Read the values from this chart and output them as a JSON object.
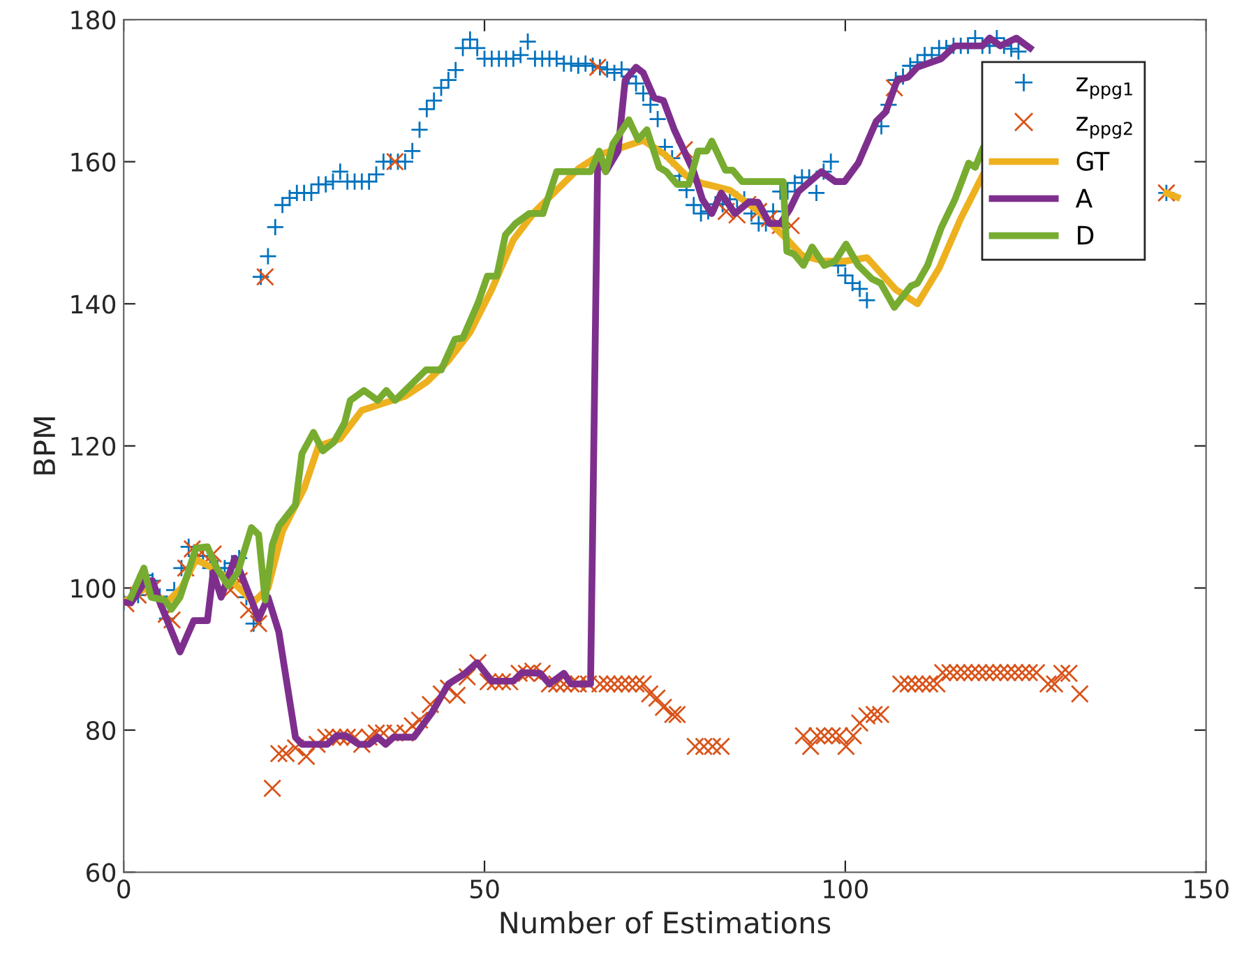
{
  "chart_data": {
    "type": "line",
    "xlabel": "Number of Estimations",
    "ylabel": "BPM",
    "xlim": [
      0,
      150
    ],
    "ylim": [
      60,
      180
    ],
    "xticks": [
      0,
      50,
      100,
      150
    ],
    "yticks": [
      60,
      80,
      100,
      120,
      140,
      160,
      180
    ],
    "grid": false,
    "legend": "top right",
    "line_style": "solid",
    "series": [
      {
        "name": "z$_{ppg1}$",
        "type": "scatter",
        "marker": "plus",
        "color": "#0072bd",
        "x": [
          0,
          1,
          2,
          3,
          4,
          5,
          6,
          7,
          8,
          9,
          10,
          11,
          12,
          13,
          14,
          15,
          16,
          17,
          18,
          19,
          20,
          21,
          22,
          23,
          24,
          25,
          26,
          27,
          28,
          29,
          30,
          31,
          32,
          33,
          34,
          35,
          36,
          37,
          38,
          39,
          40,
          41,
          42,
          43,
          44,
          45,
          46,
          47,
          48,
          49,
          50,
          51,
          52,
          53,
          54,
          55,
          56,
          57,
          58,
          59,
          60,
          61,
          62,
          63,
          64,
          65,
          66,
          67,
          68,
          69,
          70,
          71,
          72,
          73,
          74,
          75,
          76,
          77,
          78,
          79,
          80,
          81,
          82,
          83,
          84,
          85,
          86,
          87,
          88,
          89,
          90,
          91,
          92,
          93,
          94,
          95,
          96,
          97,
          98,
          99,
          100,
          101,
          102,
          103,
          105,
          106,
          107,
          108,
          109,
          110,
          111,
          112,
          113,
          114,
          115,
          116,
          117,
          118,
          119,
          120,
          121,
          122,
          123,
          124,
          144.5
        ],
        "values": [
          98,
          98.7,
          99,
          101.8,
          101,
          98.8,
          95.7,
          99.7,
          102.8,
          105.8,
          104.5,
          104.5,
          102.8,
          102.8,
          102.8,
          103.5,
          104.2,
          98.7,
          95,
          143.8,
          146.7,
          150.8,
          153.9,
          154.9,
          155.6,
          155.6,
          155.6,
          156.8,
          156.8,
          157.2,
          158.6,
          157.2,
          157.2,
          157.2,
          157.2,
          158.2,
          160,
          160,
          160,
          160,
          161.5,
          164.5,
          167.4,
          168.6,
          170.4,
          171.5,
          172.9,
          176,
          177.2,
          176,
          174.5,
          174.5,
          174.5,
          174.5,
          174.5,
          175,
          176.9,
          174.5,
          174.5,
          174.5,
          174.5,
          173.8,
          173.8,
          173.5,
          173.8,
          173.5,
          173.3,
          173,
          172.5,
          173,
          172,
          171,
          169.6,
          168,
          166,
          162.1,
          160.5,
          158,
          156,
          153.9,
          152.7,
          153,
          154,
          154,
          154.7,
          154.7,
          154.7,
          152.7,
          151.3,
          151.3,
          153,
          155.8,
          155.8,
          157,
          157.8,
          157.8,
          155.6,
          158.6,
          160,
          145.4,
          144,
          142.9,
          142.1,
          140.5,
          165,
          168,
          171.5,
          172,
          173.5,
          174,
          175,
          175,
          176,
          176,
          176.3,
          176.3,
          176.3,
          177.4,
          176.3,
          176.3,
          177.4,
          176.3,
          175.9,
          175.5,
          155.6
        ]
      },
      {
        "name": "z$_{ppg2}$",
        "type": "scatter",
        "marker": "cross",
        "color": "#d95319",
        "x": [
          0.3,
          2,
          4,
          5.9,
          6.7,
          8.6,
          9.5,
          10.8,
          12.4,
          14.8,
          16,
          17.3,
          18.7,
          19.6,
          20.6,
          21.5,
          22.5,
          23.8,
          25.3,
          26.8,
          28,
          29,
          30,
          31,
          32,
          33,
          34,
          35,
          36,
          37.6,
          37.6,
          39,
          40,
          41,
          42.5,
          44,
          45,
          46.2,
          47.6,
          49.1,
          50.5,
          51.5,
          52.5,
          53.5,
          54.8,
          55.8,
          56.7,
          58,
          59,
          60,
          61,
          62,
          63,
          64.4,
          65.7,
          66,
          67,
          68,
          69,
          70,
          71,
          72,
          72.9,
          73.9,
          74.8,
          76.1,
          76.7,
          77.7,
          79.2,
          80.4,
          81.6,
          82.8,
          83.5,
          85,
          86.5,
          88,
          89.5,
          91,
          92.5,
          94.2,
          95.2,
          96.1,
          97.1,
          98.2,
          99.2,
          100.1,
          101.1,
          102,
          103,
          104,
          104.9,
          106.8,
          107.7,
          108.7,
          109.7,
          110.7,
          111.7,
          112.7,
          113.5,
          114.5,
          115.5,
          116.5,
          117.5,
          118.5,
          119.5,
          120.5,
          121.5,
          122.5,
          123.5,
          124.5,
          125.5,
          126.5,
          128.1,
          129,
          130,
          131,
          132.5,
          144.5
        ],
        "values": [
          97.8,
          99,
          100,
          96.3,
          95.5,
          102.8,
          105.5,
          105,
          104.8,
          99.7,
          101,
          96.9,
          95,
          143.8,
          71.8,
          76.7,
          76.7,
          77.5,
          76.3,
          78,
          79,
          79,
          79,
          79,
          79,
          78,
          79,
          79.6,
          79.6,
          79.6,
          160,
          79.6,
          80.6,
          81.4,
          83.6,
          85.1,
          85.9,
          84.9,
          87.5,
          89.5,
          86.8,
          86.8,
          86.8,
          86.8,
          88,
          88,
          88.3,
          88,
          86.5,
          86.5,
          86.5,
          86.5,
          86.5,
          86.5,
          173.3,
          86.5,
          86.5,
          86.5,
          86.5,
          86.5,
          86.5,
          86.5,
          85.1,
          84.5,
          83.2,
          82.2,
          82.2,
          161.7,
          77.7,
          77.7,
          77.7,
          77.7,
          153,
          152.5,
          154,
          153,
          152,
          151,
          151,
          79.2,
          77.7,
          79.2,
          79.2,
          79.2,
          79.2,
          77.7,
          79.2,
          81,
          82,
          82.2,
          82.2,
          170.4,
          86.5,
          86.5,
          86.5,
          86.5,
          86.5,
          86.5,
          88.1,
          88.1,
          88.1,
          88.1,
          88.1,
          88.1,
          88.1,
          88.1,
          88.1,
          88.1,
          88.1,
          88.1,
          88.1,
          88.1,
          86.5,
          86.5,
          88,
          88,
          85.1,
          155.6
        ]
      },
      {
        "name": "GT",
        "color": "#edb120",
        "x": [
          0,
          3,
          6,
          8,
          10,
          12,
          15,
          18,
          20,
          22,
          25,
          27,
          30,
          33,
          36,
          39,
          42,
          45,
          48,
          51,
          54,
          57,
          60,
          63,
          66,
          69,
          72,
          75,
          78,
          80,
          84,
          88,
          92,
          94,
          97,
          100,
          103,
          107,
          110,
          113,
          116,
          119,
          122,
          130,
          144.5,
          146
        ],
        "values": [
          98,
          100,
          98,
          100,
          104,
          103,
          101,
          98,
          100,
          108,
          114,
          120,
          121,
          125,
          126,
          127,
          129,
          132,
          136,
          142,
          149,
          153,
          156,
          159,
          161,
          162,
          163,
          161,
          158,
          157,
          156,
          153,
          149,
          146.8,
          146,
          146,
          146.5,
          142,
          140,
          145,
          152,
          158,
          null,
          null,
          155.6,
          155
        ]
      },
      {
        "name": "A",
        "color": "#7e2f8e",
        "x": [
          0,
          1,
          3,
          4,
          5,
          7.8,
          9.7,
          11.6,
          12.4,
          13.5,
          15.4,
          18.7,
          20,
          21.5,
          23.8,
          24.7,
          28.2,
          29.5,
          30.8,
          32.6,
          34,
          35.2,
          36.3,
          37.4,
          40.2,
          42.8,
          45,
          47.2,
          49,
          51,
          54,
          55.2,
          57.7,
          59,
          61,
          62,
          64.7,
          65.7,
          66.8,
          68.5,
          69.5,
          71,
          72,
          73.5,
          74.8,
          76.3,
          79,
          80.2,
          81.5,
          82.8,
          84.7,
          86.6,
          87.9,
          89.5,
          91,
          92.3,
          93.5,
          96.7,
          98.6,
          99.9,
          101.8,
          104.3,
          105.6,
          107.2,
          108.7,
          110,
          113.3,
          115.2,
          119,
          120,
          121.5,
          123.7,
          125.6
        ],
        "values": [
          98,
          97.9,
          101,
          101,
          98,
          91,
          95.4,
          95.4,
          102.2,
          98.7,
          104.2,
          95.7,
          98.7,
          93.8,
          79,
          78,
          78,
          79.2,
          79.2,
          78,
          78,
          79,
          78,
          79,
          79,
          82.6,
          86.5,
          87.9,
          89.5,
          86.9,
          86.9,
          88.1,
          88,
          86.5,
          88,
          86.5,
          86.5,
          161,
          158.6,
          161.5,
          171.5,
          173.3,
          172.5,
          169,
          168.6,
          164.5,
          158.6,
          154.7,
          152.7,
          155.6,
          152.7,
          154.3,
          154.3,
          151.3,
          151.3,
          153.3,
          155.8,
          158.6,
          157.2,
          157.2,
          159.8,
          165.7,
          167,
          171.5,
          171.9,
          173.3,
          174.5,
          176.3,
          176.3,
          177.4,
          176.3,
          177.4,
          176
        ]
      },
      {
        "name": "D",
        "color": "#77ac30",
        "x": [
          1,
          2.8,
          3.8,
          5.7,
          6.6,
          7.8,
          10,
          11.6,
          12.9,
          14.5,
          15.8,
          17.7,
          18.7,
          19.6,
          20.6,
          21.5,
          23.8,
          24.7,
          26.3,
          27.6,
          29.1,
          30.6,
          31.4,
          33.3,
          35.2,
          36.4,
          37.6,
          39,
          41.9,
          44,
          45.9,
          47,
          49.1,
          50.4,
          51.7,
          52.9,
          54.3,
          56.2,
          58.1,
          60,
          64.7,
          65.9,
          66.8,
          67.8,
          70,
          71.3,
          72.5,
          74.2,
          75.2,
          76.7,
          78.3,
          79.6,
          80.8,
          81.5,
          83.4,
          84.4,
          85.7,
          91.4,
          91.9,
          92.9,
          94.2,
          95.4,
          97.1,
          98.6,
          100.1,
          101.8,
          103.7,
          104.9,
          106.8,
          109.1,
          110,
          111.4,
          113.3,
          115.2,
          117.1,
          118,
          119
        ],
        "values": [
          98.7,
          102.8,
          98.7,
          98.3,
          97,
          98.7,
          105.6,
          105.8,
          102.8,
          100.3,
          102.2,
          108.5,
          107.5,
          98.3,
          106.1,
          108.7,
          111.7,
          118.9,
          121.9,
          119.3,
          120.5,
          123.2,
          126.4,
          127.8,
          126.4,
          127.8,
          126.4,
          127.8,
          130.7,
          130.7,
          135,
          135.2,
          140.1,
          143.9,
          143.9,
          149.7,
          151.3,
          152.7,
          152.7,
          158.6,
          158.6,
          161.5,
          158.6,
          162.5,
          165.9,
          163.1,
          164.5,
          159.2,
          158.6,
          156.8,
          156.8,
          161.5,
          161.5,
          162.9,
          158.8,
          158.8,
          157.2,
          157.2,
          147.4,
          147,
          145.4,
          148,
          145.4,
          146,
          148.4,
          145.4,
          143.5,
          142.9,
          139.5,
          142.5,
          142.9,
          145.4,
          150.7,
          154.7,
          159.8,
          159.2,
          161.7
        ]
      }
    ]
  }
}
